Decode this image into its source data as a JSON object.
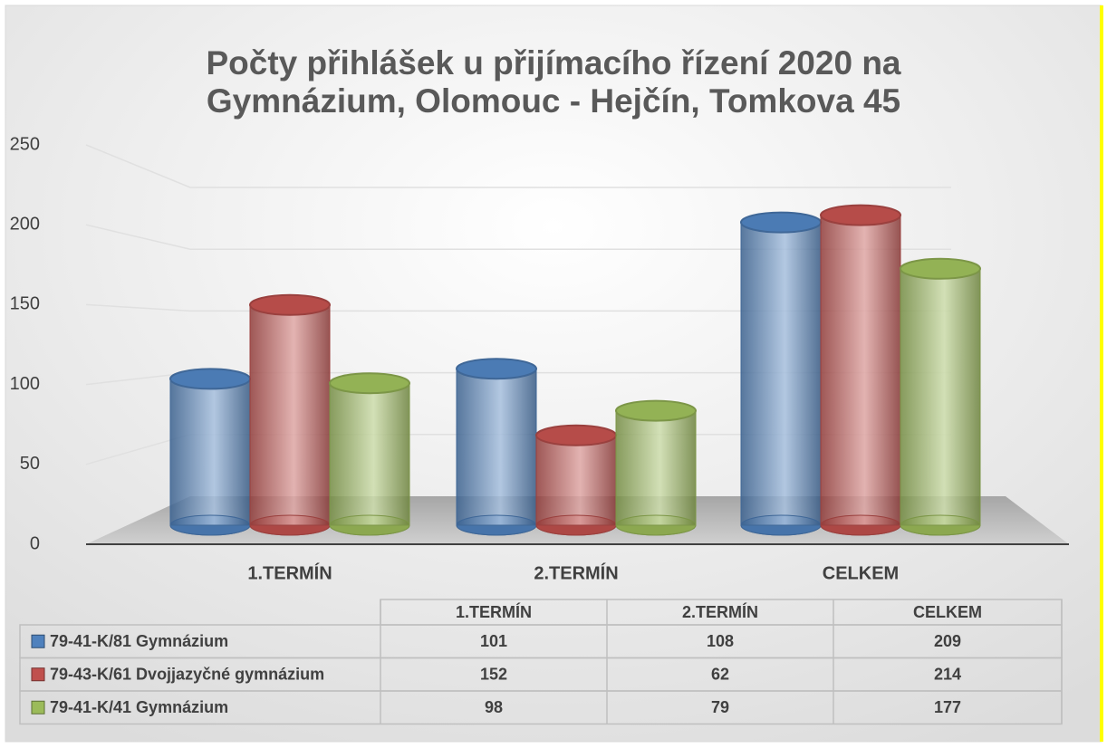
{
  "chart_data": {
    "type": "bar3d",
    "title": "Počty přihlášek u přijímacího řízení 2020 na",
    "subtitle": "Gymnázium, Olomouc - Hejčín, Tomkova 45",
    "categories": [
      "1.TERMÍN",
      "2.TERMÍN",
      "CELKEM"
    ],
    "series": [
      {
        "name": "79-41-K/81 Gymnázium",
        "color": "#4f81bd",
        "values": [
          101,
          108,
          209
        ]
      },
      {
        "name": "79-43-K/61 Dvojjazyčné gymnázium",
        "color": "#c0504d",
        "values": [
          152,
          62,
          214
        ]
      },
      {
        "name": "79-41-K/41 Gymnázium",
        "color": "#9bbb59",
        "values": [
          98,
          79,
          177
        ]
      }
    ],
    "ylim": [
      0,
      250
    ],
    "yticks": [
      0,
      50,
      100,
      150,
      200,
      250
    ],
    "grid": true,
    "legend": "table"
  }
}
